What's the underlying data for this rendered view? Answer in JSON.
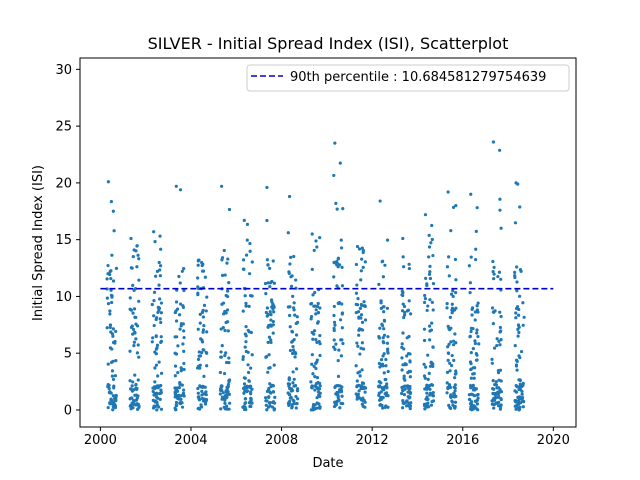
{
  "chart_data": {
    "type": "scatter",
    "title": "SILVER - Initial Spread Index (ISI), Scatterplot",
    "xlabel": "Date",
    "ylabel": "Initial Spread Index (ISI)",
    "xlim": [
      1999.1,
      2021.0
    ],
    "ylim": [
      -1.5,
      31.0
    ],
    "xticks": [
      2000,
      2004,
      2008,
      2012,
      2016,
      2020
    ],
    "xtick_labels": [
      "2000",
      "2004",
      "2008",
      "2012",
      "2016",
      "2020"
    ],
    "yticks": [
      0,
      5,
      10,
      15,
      20,
      25,
      30
    ],
    "ytick_labels": [
      "0",
      "5",
      "10",
      "15",
      "20",
      "25",
      "30"
    ],
    "grid": false,
    "legend": {
      "position": "top-right",
      "entries": [
        {
          "label": "90th percentile : 10.684581279754639",
          "style": "dashed-line",
          "color": "#0000cc"
        }
      ]
    },
    "reference_lines": [
      {
        "label": "90th percentile : 10.684581279754639",
        "y": 10.684581279754639,
        "x_start": 2000.0,
        "x_end": 2020.0,
        "color": "#0000cc",
        "style": "dashed"
      }
    ],
    "series": [
      {
        "marker_color": "#1f77b4",
        "season_clusters": [
          {
            "year": 2000,
            "x_start": 2000.29,
            "x_end": 2000.71,
            "max_y": 20.1
          },
          {
            "year": 2001,
            "x_start": 2001.29,
            "x_end": 2001.71,
            "max_y": 15.1
          },
          {
            "year": 2002,
            "x_start": 2002.29,
            "x_end": 2002.71,
            "max_y": 15.7
          },
          {
            "year": 2003,
            "x_start": 2003.29,
            "x_end": 2003.71,
            "max_y": 19.7
          },
          {
            "year": 2004,
            "x_start": 2004.29,
            "x_end": 2004.71,
            "max_y": 13.2
          },
          {
            "year": 2005,
            "x_start": 2005.29,
            "x_end": 2005.71,
            "max_y": 19.7
          },
          {
            "year": 2006,
            "x_start": 2006.29,
            "x_end": 2006.71,
            "max_y": 16.7
          },
          {
            "year": 2007,
            "x_start": 2007.29,
            "x_end": 2007.71,
            "max_y": 19.6
          },
          {
            "year": 2008,
            "x_start": 2008.29,
            "x_end": 2008.71,
            "max_y": 18.8
          },
          {
            "year": 2009,
            "x_start": 2009.29,
            "x_end": 2009.71,
            "max_y": 15.5
          },
          {
            "year": 2010,
            "x_start": 2010.29,
            "x_end": 2010.71,
            "max_y": 23.5
          },
          {
            "year": 2011,
            "x_start": 2011.29,
            "x_end": 2011.71,
            "max_y": 14.4
          },
          {
            "year": 2012,
            "x_start": 2012.29,
            "x_end": 2012.71,
            "max_y": 18.4
          },
          {
            "year": 2013,
            "x_start": 2013.29,
            "x_end": 2013.71,
            "max_y": 15.1
          },
          {
            "year": 2014,
            "x_start": 2014.29,
            "x_end": 2014.71,
            "max_y": 17.2
          },
          {
            "year": 2015,
            "x_start": 2015.29,
            "x_end": 2015.71,
            "max_y": 19.2
          },
          {
            "year": 2016,
            "x_start": 2016.29,
            "x_end": 2016.71,
            "max_y": 19.0
          },
          {
            "year": 2017,
            "x_start": 2017.29,
            "x_end": 2017.71,
            "max_y": 23.6
          },
          {
            "year": 2018,
            "x_start": 2018.29,
            "x_end": 2018.71,
            "max_y": 20.0
          }
        ]
      }
    ]
  }
}
